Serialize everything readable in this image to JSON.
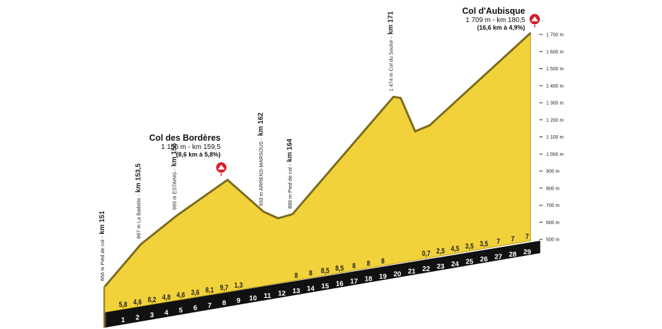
{
  "chart_data": {
    "type": "profile",
    "x": [
      0,
      2.5,
      5,
      8.5,
      11,
      12,
      13,
      20,
      20.5,
      21.5,
      22.5,
      29.5
    ],
    "values": [
      656,
      867,
      999,
      1156,
      933,
      880,
      889,
      1474,
      1460,
      1250,
      1270,
      1709
    ],
    "point_labels": [
      {
        "text": "656 m Pied de col -",
        "km": "km 151"
      },
      {
        "text": "867 m La Badette -",
        "km": "km 153,5"
      },
      {
        "text": "999 m ESTAING -",
        "km": "km 156"
      },
      {
        "name": "Col des Bordères",
        "detail": "1 156 m - km 159,5",
        "climb": "(8,6 km à 5,8%)"
      },
      {
        "text": "933 m ARRENS-MARSOUS -",
        "km": "km 162"
      },
      null,
      {
        "text": "889 m Pied de col -",
        "km": "km 164"
      },
      {
        "text": "1 474 m Col du Soulor -",
        "km": "km 171"
      },
      null,
      null,
      null,
      {
        "name": "Col d'Aubisque",
        "detail": "1 709 m - km 180,5",
        "climb": "(16,6 km à 4,9%)"
      }
    ],
    "ylim": [
      500,
      1700
    ],
    "yticks": [
      {
        "value": 500,
        "label": "500 m"
      },
      {
        "value": 600,
        "label": "600 m"
      },
      {
        "value": 700,
        "label": "700 m"
      },
      {
        "value": 800,
        "label": "800 m"
      },
      {
        "value": 900,
        "label": "900 m"
      },
      {
        "value": 1000,
        "label": "1 000 m"
      },
      {
        "value": 1100,
        "label": "1 100 m"
      },
      {
        "value": 1200,
        "label": "1 200 m"
      },
      {
        "value": 1300,
        "label": "1 300 m"
      },
      {
        "value": 1400,
        "label": "1 400 m"
      },
      {
        "value": 1500,
        "label": "1 500 m"
      },
      {
        "value": 1600,
        "label": "1 600 m"
      },
      {
        "value": 1700,
        "label": "1 700 m"
      }
    ],
    "categories": [
      1,
      2,
      3,
      4,
      5,
      6,
      7,
      8,
      9,
      10,
      11,
      12,
      13,
      14,
      15,
      16,
      17,
      18,
      19,
      20,
      21,
      22,
      23,
      24,
      25,
      26,
      27,
      28,
      29
    ],
    "gradients": {
      "values": [
        5.8,
        4.6,
        8.2,
        4.8,
        4.6,
        3.6,
        8.1,
        9.7,
        1.3,
        null,
        null,
        null,
        8,
        8,
        8.5,
        8.5,
        8,
        8,
        8,
        null,
        null,
        0.7,
        2.5,
        4.5,
        3.5,
        3.5,
        7,
        7,
        7
      ],
      "value_labels": [
        "5,8",
        "4,6",
        "8,2",
        "4,8",
        "4,6",
        "3,6",
        "8,1",
        "9,7",
        "1,3",
        null,
        null,
        null,
        "8",
        "8",
        "8,5",
        "8,5",
        "8",
        "8",
        "8",
        null,
        null,
        "0,7",
        "2,5",
        "4,5",
        "3,5",
        "3,5",
        "7",
        "7",
        "7"
      ]
    },
    "fill_color": "#f2d23a"
  }
}
